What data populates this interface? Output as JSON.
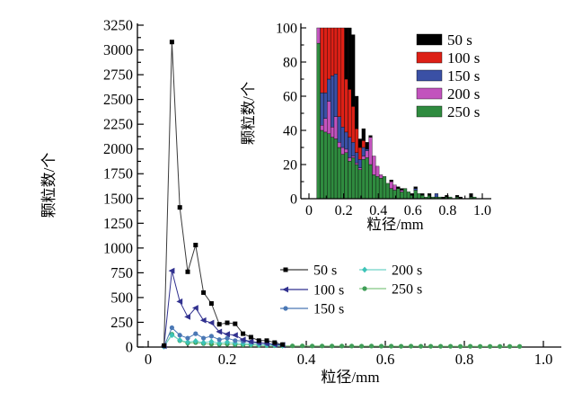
{
  "figure_title": "particle-size-distribution-figure",
  "axis_color": "#000000",
  "background": "#ffffff",
  "chart_data": [
    {
      "id": "main",
      "type": "line",
      "title": "",
      "xlabel": "粒径/mm",
      "ylabel": "颗粒数/个",
      "xlim": [
        0,
        1.0
      ],
      "ylim": [
        0,
        3250
      ],
      "x_major_ticks": [
        0,
        0.2,
        0.4,
        0.6,
        0.8,
        1.0
      ],
      "x_tick_labels": [
        "0",
        "0.2",
        "0.4",
        "0.6",
        "0.8",
        "1.0"
      ],
      "x_minor_step": 0.1,
      "y_major_step": 250,
      "y_minor_step": 125,
      "grid": false,
      "legend_position": "lower-center",
      "series": [
        {
          "name": "250 s",
          "marker": "circle",
          "marker_color": "#3f9e57",
          "line_color": "#82c882",
          "x": [
            0.04,
            0.06,
            0.08,
            0.1,
            0.12,
            0.14,
            0.16,
            0.18,
            0.2,
            0.22,
            0.24,
            0.26,
            0.28,
            0.3,
            0.32,
            0.34,
            0.365,
            0.39,
            0.415,
            0.44,
            0.465,
            0.49,
            0.515,
            0.54,
            0.565,
            0.59,
            0.615,
            0.64,
            0.665,
            0.69,
            0.715,
            0.74,
            0.765,
            0.79,
            0.815,
            0.84,
            0.865,
            0.89,
            0.915,
            0.94
          ],
          "y": [
            5,
            130,
            65,
            40,
            45,
            35,
            30,
            28,
            30,
            25,
            22,
            20,
            18,
            15,
            14,
            13,
            12,
            12,
            11,
            11,
            10,
            10,
            10,
            9,
            10,
            9,
            9,
            8,
            9,
            8,
            8,
            8,
            8,
            7,
            8,
            7,
            7,
            7,
            7,
            7
          ]
        },
        {
          "name": "200 s",
          "marker": "diamond",
          "marker_color": "#3cc3b7",
          "line_color": "#6fd2c8",
          "x": [
            0.04,
            0.06,
            0.08,
            0.1,
            0.12,
            0.14,
            0.16,
            0.18,
            0.2,
            0.22,
            0.24,
            0.26,
            0.28,
            0.3,
            0.32,
            0.34
          ],
          "y": [
            5,
            120,
            70,
            50,
            60,
            45,
            55,
            40,
            50,
            40,
            35,
            30,
            25,
            20,
            18,
            15
          ]
        },
        {
          "name": "150 s",
          "marker": "circle",
          "marker_color": "#4a78b5",
          "line_color": "#4a78b5",
          "x": [
            0.04,
            0.06,
            0.08,
            0.1,
            0.12,
            0.14,
            0.16,
            0.18,
            0.2,
            0.22,
            0.24,
            0.26,
            0.28,
            0.3,
            0.32,
            0.34
          ],
          "y": [
            8,
            195,
            120,
            90,
            135,
            90,
            110,
            75,
            90,
            65,
            60,
            50,
            40,
            35,
            30,
            25
          ]
        },
        {
          "name": "100 s",
          "marker": "triangle-left",
          "marker_color": "#31318f",
          "line_color": "#31318f",
          "x": [
            0.04,
            0.06,
            0.08,
            0.1,
            0.12,
            0.14,
            0.16,
            0.18,
            0.2,
            0.22,
            0.24,
            0.26,
            0.28,
            0.3,
            0.32,
            0.34
          ],
          "y": [
            10,
            770,
            460,
            305,
            395,
            270,
            245,
            155,
            130,
            120,
            75,
            55,
            45,
            35,
            25,
            20
          ]
        },
        {
          "name": "50 s",
          "marker": "square",
          "marker_color": "#000000",
          "line_color": "#3a3a3a",
          "x": [
            0.04,
            0.06,
            0.08,
            0.1,
            0.12,
            0.14,
            0.16,
            0.18,
            0.2,
            0.22,
            0.24,
            0.26,
            0.28,
            0.3,
            0.32,
            0.34
          ],
          "y": [
            15,
            3080,
            1410,
            760,
            1030,
            550,
            440,
            230,
            245,
            235,
            135,
            100,
            65,
            65,
            45,
            25
          ]
        }
      ],
      "legend": {
        "columns": [
          [
            "50 s",
            "100 s",
            "150 s"
          ],
          [
            "200 s",
            "250 s"
          ]
        ]
      }
    },
    {
      "id": "inset",
      "type": "bar-stacked",
      "title": "",
      "xlabel": "粒径/mm",
      "ylabel": "颗粒数/个",
      "xlim": [
        0,
        1.0
      ],
      "ylim": [
        0,
        100
      ],
      "x_major_ticks": [
        0,
        0.2,
        0.4,
        0.6,
        0.8,
        1.0
      ],
      "x_tick_labels": [
        "0",
        "0.2",
        "0.4",
        "0.6",
        "0.8",
        "1.0"
      ],
      "x_minor_step": 0.1,
      "y_major_step": 20,
      "y_minor_step": 10,
      "grid": false,
      "clip_at": 100,
      "legend_order": [
        "50 s",
        "100 s",
        "150 s",
        "200 s",
        "250 s"
      ],
      "legend_colors": {
        "50 s": "#000000",
        "100 s": "#dd2016",
        "150 s": "#3a50a5",
        "200 s": "#c253bd",
        "250 s": "#2f8b3f"
      },
      "stack_order_bottom_to_top": [
        "250 s",
        "200 s",
        "150 s",
        "100 s",
        "50 s"
      ],
      "bars": {
        "x": [
          0.055,
          0.075,
          0.095,
          0.115,
          0.135,
          0.155,
          0.175,
          0.195,
          0.215,
          0.235,
          0.255,
          0.275,
          0.295,
          0.315,
          0.335,
          0.355,
          0.375,
          0.395,
          0.415,
          0.435,
          0.455,
          0.475,
          0.495,
          0.515,
          0.535,
          0.555,
          0.575,
          0.595,
          0.615,
          0.635,
          0.655,
          0.675,
          0.695,
          0.715,
          0.735,
          0.755,
          0.775,
          0.795,
          0.815,
          0.855,
          0.875,
          0.935,
          0.955
        ],
        "s250": [
          91,
          40,
          39,
          38,
          36,
          35,
          30,
          26,
          27,
          22,
          24,
          20,
          17,
          23,
          24,
          20,
          14,
          13,
          12,
          13,
          9,
          6,
          5,
          6,
          4,
          6,
          4,
          2,
          5,
          3,
          2,
          1,
          2,
          1,
          1,
          1,
          0,
          1,
          1,
          1,
          0,
          1,
          1
        ],
        "s200": [
          9,
          3,
          8,
          19,
          6,
          13,
          3,
          4,
          2,
          2,
          1,
          1,
          1,
          2,
          4,
          16,
          11,
          6,
          2,
          0,
          0,
          4,
          3,
          0,
          1,
          0,
          0,
          0,
          0,
          0,
          0,
          0,
          0,
          0,
          0,
          0,
          0,
          0,
          0,
          0,
          0,
          0,
          0
        ],
        "s150": [
          0,
          19,
          15,
          13,
          30,
          25,
          15,
          12,
          10,
          12,
          8,
          6,
          5,
          5,
          1,
          0,
          0,
          0,
          0,
          0,
          0,
          0,
          0,
          0,
          0,
          0,
          0,
          0,
          1,
          0,
          0,
          0,
          0,
          0,
          2,
          0,
          0,
          0,
          0,
          0,
          0,
          0,
          0
        ],
        "s100": [
          0,
          38,
          38,
          30,
          28,
          27,
          52,
          58,
          31,
          28,
          21,
          14,
          7,
          4,
          0,
          0,
          0,
          0,
          0,
          0,
          0,
          0,
          0,
          0,
          0,
          0,
          0,
          0,
          0,
          0,
          0,
          0,
          0,
          0,
          0,
          0,
          0,
          0,
          0,
          0,
          0,
          0,
          0
        ],
        "s50": [
          0,
          0,
          0,
          0,
          0,
          0,
          0,
          0,
          30,
          36,
          42,
          19,
          5,
          7,
          4,
          1,
          0,
          0,
          0,
          0,
          0,
          1,
          0,
          1,
          1,
          0,
          0,
          1,
          1,
          0,
          1,
          0,
          1,
          0,
          0,
          0,
          1,
          1,
          0,
          1,
          1,
          2,
          0
        ]
      }
    }
  ]
}
